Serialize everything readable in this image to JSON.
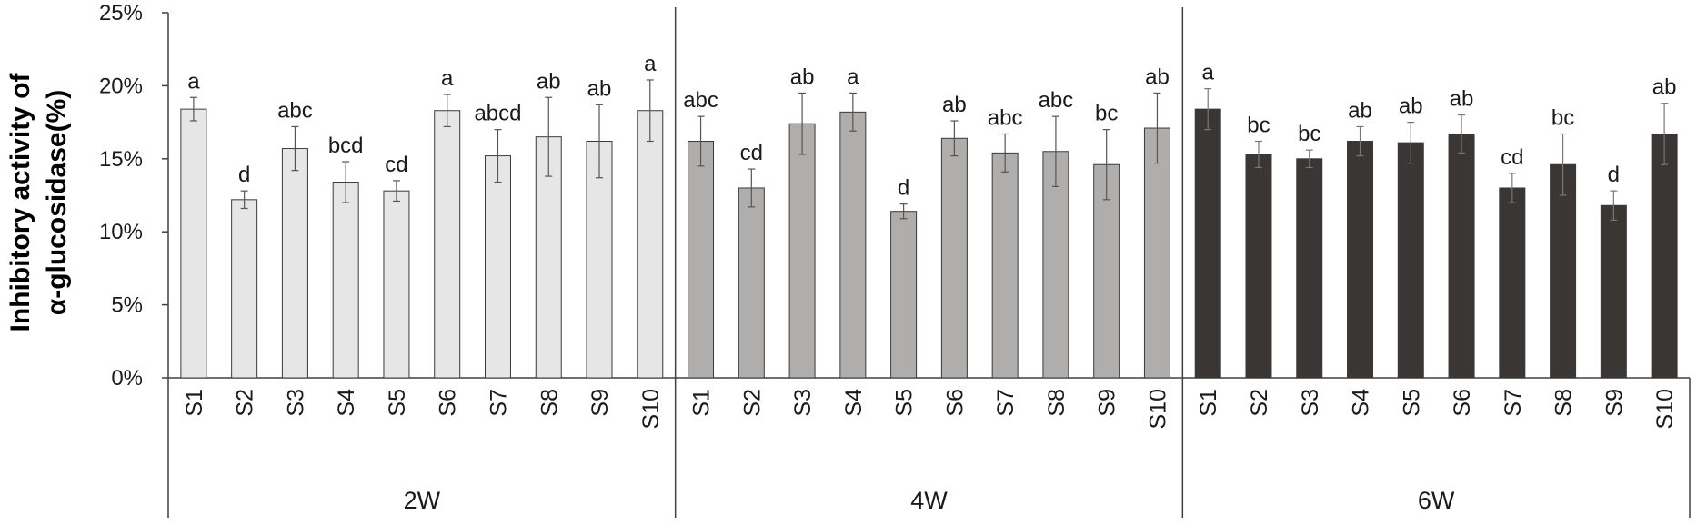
{
  "chart_data": {
    "type": "bar",
    "ylabel": [
      "Inhibitory activity of",
      "α-glucosidase(%)"
    ],
    "ylim": [
      0,
      25
    ],
    "yticks": [
      0,
      5,
      10,
      15,
      20,
      25
    ],
    "ytick_labels": [
      "0%",
      "5%",
      "10%",
      "15%",
      "20%",
      "25%"
    ],
    "grid": false,
    "legend": "none",
    "categories": [
      "S1",
      "S2",
      "S3",
      "S4",
      "S5",
      "S6",
      "S7",
      "S8",
      "S9",
      "S10"
    ],
    "groups": [
      {
        "name": "2W",
        "color": "#e6e6e6",
        "values": [
          18.4,
          12.2,
          15.7,
          13.4,
          12.8,
          18.3,
          15.2,
          16.5,
          16.2,
          18.3
        ],
        "errors": [
          0.8,
          0.6,
          1.5,
          1.4,
          0.7,
          1.1,
          1.8,
          2.7,
          2.5,
          2.1
        ],
        "letters": [
          "a",
          "d",
          "abc",
          "bcd",
          "cd",
          "a",
          "abcd",
          "ab",
          "ab",
          "a"
        ]
      },
      {
        "name": "4W",
        "color": "#b0aeac",
        "values": [
          16.2,
          13.0,
          17.4,
          18.2,
          11.4,
          16.4,
          15.4,
          15.5,
          14.6,
          17.1
        ],
        "errors": [
          1.7,
          1.3,
          2.1,
          1.3,
          0.5,
          1.2,
          1.3,
          2.4,
          2.4,
          2.4
        ],
        "letters": [
          "abc",
          "cd",
          "ab",
          "a",
          "d",
          "ab",
          "abc",
          "abc",
          "bc",
          "ab"
        ]
      },
      {
        "name": "6W",
        "color": "#393634",
        "values": [
          18.4,
          15.3,
          15.0,
          16.2,
          16.1,
          16.7,
          13.0,
          14.6,
          11.8,
          16.7
        ],
        "errors": [
          1.4,
          0.9,
          0.6,
          1.0,
          1.4,
          1.3,
          1.0,
          2.1,
          1.0,
          2.1
        ],
        "letters": [
          "a",
          "bc",
          "bc",
          "ab",
          "ab",
          "ab",
          "cd",
          "bc",
          "d",
          "ab"
        ]
      }
    ]
  }
}
